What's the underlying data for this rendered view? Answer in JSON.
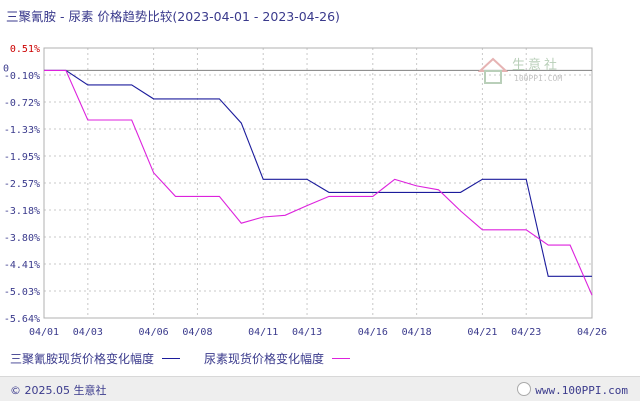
{
  "title": "三聚氰胺 - 尿素 价格趋势比较(2023-04-01 - 2023-04-26)",
  "watermark": {
    "brand": "生意社",
    "url": "100PPI.COM"
  },
  "footer": {
    "copyright": "© 2025.05 生意社",
    "url": "www.100PPI.com"
  },
  "colors": {
    "series1": "#1c1c9c",
    "series2": "#dd22dd",
    "zero_line": "#808080",
    "grid": "#c8c8c8",
    "text": "#3a3a8c",
    "top_tick": "#cc0000"
  },
  "chart_data": {
    "type": "line",
    "title": "三聚氰胺 - 尿素 价格趋势比较(2023-04-01 - 2023-04-26)",
    "x_dates": [
      "04/01",
      "04/02",
      "04/03",
      "04/04",
      "04/05",
      "04/06",
      "04/07",
      "04/08",
      "04/09",
      "04/10",
      "04/11",
      "04/12",
      "04/13",
      "04/14",
      "04/15",
      "04/16",
      "04/17",
      "04/18",
      "04/19",
      "04/20",
      "04/21",
      "04/22",
      "04/23",
      "04/24",
      "04/25",
      "04/26"
    ],
    "xticks": [
      "04/01",
      "04/03",
      "04/06",
      "04/08",
      "04/11",
      "04/13",
      "04/16",
      "04/18",
      "04/21",
      "04/23",
      "04/26"
    ],
    "yticks": [
      "0.51%",
      "-0.10%",
      "-0.72%",
      "-1.33%",
      "-1.95%",
      "-2.57%",
      "-3.18%",
      "-3.80%",
      "-4.41%",
      "-5.03%",
      "-5.64%"
    ],
    "zero_label": "0",
    "ylim": [
      -5.64,
      0.51
    ],
    "grid": true,
    "legend_position": "bottom",
    "series": [
      {
        "name": "三聚氰胺现货价格变化幅度",
        "color": "#1c1c9c",
        "values": [
          0,
          0,
          -0.33,
          -0.33,
          -0.33,
          -0.65,
          -0.65,
          -0.65,
          -0.65,
          -1.2,
          -2.48,
          -2.48,
          -2.48,
          -2.78,
          -2.78,
          -2.78,
          -2.78,
          -2.78,
          -2.78,
          -2.78,
          -2.48,
          -2.48,
          -2.48,
          -4.69,
          -4.69,
          -4.69
        ]
      },
      {
        "name": "尿素现货价格变化幅度",
        "color": "#dd22dd",
        "values": [
          0,
          0,
          -1.13,
          -1.13,
          -1.13,
          -2.33,
          -2.87,
          -2.87,
          -2.87,
          -3.48,
          -3.34,
          -3.3,
          -3.08,
          -2.87,
          -2.87,
          -2.87,
          -2.48,
          -2.63,
          -2.72,
          -3.2,
          -3.63,
          -3.63,
          -3.63,
          -3.98,
          -3.98,
          -5.12
        ]
      }
    ]
  }
}
